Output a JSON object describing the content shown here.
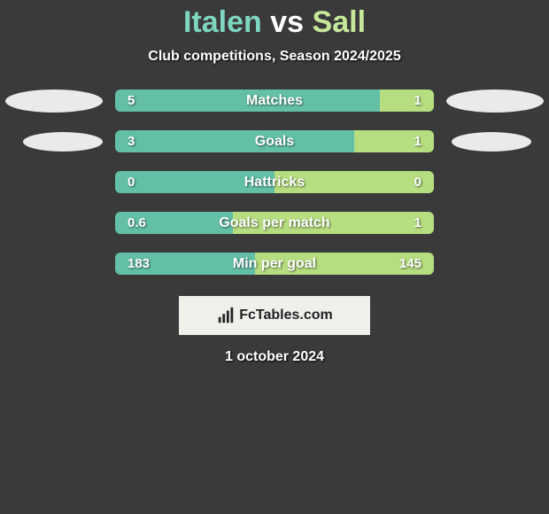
{
  "colors": {
    "bg": "#3a3a3a",
    "left_bar": "#63c0a6",
    "right_bar": "#b6dd7f",
    "title_left": "#7ed6c0",
    "title_right": "#c6e89a",
    "ellipse": "#eaeaea",
    "footer_bg": "#eef0ea",
    "footer_text": "#222222",
    "text": "#ffffff"
  },
  "title": {
    "player1": "Italen",
    "vs": "vs",
    "player2": "Sall"
  },
  "subtitle": "Club competitions, Season 2024/2025",
  "bar_track_width": 360,
  "stats": [
    {
      "label": "Matches",
      "left_val": "5",
      "right_val": "1",
      "left_pct": 83,
      "right_pct": 17,
      "ellipse": "big"
    },
    {
      "label": "Goals",
      "left_val": "3",
      "right_val": "1",
      "left_pct": 75,
      "right_pct": 25,
      "ellipse": "small"
    },
    {
      "label": "Hattricks",
      "left_val": "0",
      "right_val": "0",
      "left_pct": 50,
      "right_pct": 50,
      "ellipse": "none"
    },
    {
      "label": "Goals per match",
      "left_val": "0.6",
      "right_val": "1",
      "left_pct": 37,
      "right_pct": 63,
      "ellipse": "none"
    },
    {
      "label": "Min per goal",
      "left_val": "183",
      "right_val": "145",
      "left_pct": 44,
      "right_pct": 56,
      "ellipse": "none"
    }
  ],
  "footer": {
    "icon": "bar-chart-icon",
    "text": "FcTables.com"
  },
  "date": "1 october 2024"
}
